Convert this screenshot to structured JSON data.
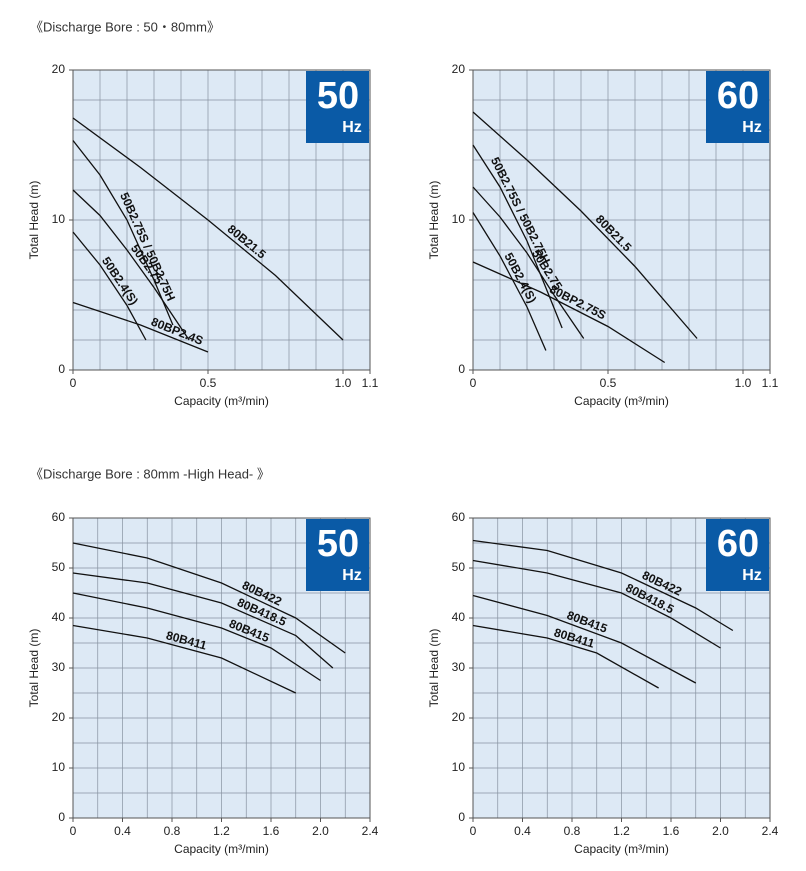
{
  "sections": [
    {
      "heading": "《Discharge Bore : 50・80mm》"
    },
    {
      "heading": "《Discharge Bore : 80mm -High Head- 》"
    }
  ],
  "chart_data": [
    {
      "type": "line",
      "badge": {
        "value": "50",
        "unit": "Hz"
      },
      "xlabel": "Capacity (m³/min)",
      "ylabel": "Total Head (m)",
      "xlim": [
        0,
        1.1
      ],
      "xticks": [
        0,
        0.5,
        {
          "value": 1,
          "label": "1.0"
        },
        1.1
      ],
      "ylim": [
        0,
        20
      ],
      "yticks": [
        0,
        10,
        20
      ],
      "grid_step": [
        0.1,
        2
      ],
      "color": "#111111",
      "series": [
        {
          "name": "80B21.5",
          "x": [
            0,
            0.25,
            0.5,
            0.75,
            1.0
          ],
          "values": [
            16.8,
            13.5,
            10,
            6.3,
            2
          ]
        },
        {
          "name": "50B2.75S / 50B2.75H",
          "x": [
            0,
            0.1,
            0.2,
            0.3,
            0.37
          ],
          "values": [
            15.3,
            13,
            10,
            6,
            3
          ]
        },
        {
          "name": "50B2.75",
          "x": [
            0,
            0.1,
            0.2,
            0.3,
            0.43
          ],
          "values": [
            12,
            10.3,
            8,
            5.5,
            2
          ]
        },
        {
          "name": "50B2.4(S)",
          "x": [
            0,
            0.1,
            0.2,
            0.27
          ],
          "values": [
            9.2,
            7,
            4.3,
            2
          ]
        },
        {
          "name": "80BP2.4S",
          "x": [
            0,
            0.25,
            0.5
          ],
          "values": [
            4.5,
            3,
            1.2
          ]
        }
      ]
    },
    {
      "type": "line",
      "badge": {
        "value": "60",
        "unit": "Hz"
      },
      "xlabel": "Capacity (m³/min)",
      "ylabel": "Total Head (m)",
      "xlim": [
        0,
        1.1
      ],
      "xticks": [
        0,
        0.5,
        {
          "value": 1,
          "label": "1.0"
        },
        1.1
      ],
      "ylim": [
        0,
        20
      ],
      "yticks": [
        0,
        10,
        20
      ],
      "grid_step": [
        0.1,
        2
      ],
      "color": "#111111",
      "series": [
        {
          "name": "80B21.5",
          "x": [
            0,
            0.2,
            0.4,
            0.6,
            0.83
          ],
          "values": [
            17.2,
            14,
            10.6,
            6.9,
            2.1
          ]
        },
        {
          "name": "50B2.75S / 50B2.75H",
          "x": [
            0,
            0.1,
            0.2,
            0.33
          ],
          "values": [
            15,
            12.2,
            8.6,
            2.8
          ]
        },
        {
          "name": "50B2.75",
          "x": [
            0,
            0.1,
            0.2,
            0.3,
            0.41
          ],
          "values": [
            12.2,
            10.2,
            7.8,
            5,
            2.1
          ]
        },
        {
          "name": "50B2.4(S)",
          "x": [
            0,
            0.1,
            0.2,
            0.27
          ],
          "values": [
            10.5,
            7.6,
            4.2,
            1.3
          ]
        },
        {
          "name": "80BP2.75S",
          "x": [
            0,
            0.25,
            0.5,
            0.71
          ],
          "values": [
            7.2,
            5.2,
            2.9,
            0.5
          ]
        }
      ]
    },
    {
      "type": "line",
      "badge": {
        "value": "50",
        "unit": "Hz"
      },
      "xlabel": "Capacity (m³/min)",
      "ylabel": "Total Head (m)",
      "xlim": [
        0,
        2.4
      ],
      "xticks": [
        0,
        0.4,
        0.8,
        1.2,
        1.6,
        {
          "value": 2,
          "label": "2.0"
        },
        2.4
      ],
      "ylim": [
        0,
        60
      ],
      "yticks": [
        0,
        10,
        20,
        30,
        40,
        50,
        60
      ],
      "grid_step": [
        0.2,
        5
      ],
      "color": "#111111",
      "series": [
        {
          "name": "80B422",
          "x": [
            0,
            0.6,
            1.2,
            1.8,
            2.2
          ],
          "values": [
            55,
            52,
            47,
            40,
            33
          ]
        },
        {
          "name": "80B418.5",
          "x": [
            0,
            0.6,
            1.2,
            1.8,
            2.1
          ],
          "values": [
            49,
            47,
            43,
            36.5,
            30
          ]
        },
        {
          "name": "80B415",
          "x": [
            0,
            0.6,
            1.2,
            1.6,
            2.0
          ],
          "values": [
            45,
            42,
            38,
            34,
            27.5
          ]
        },
        {
          "name": "80B411",
          "x": [
            0,
            0.6,
            1.2,
            1.8
          ],
          "values": [
            38.5,
            36,
            32,
            25
          ]
        }
      ]
    },
    {
      "type": "line",
      "badge": {
        "value": "60",
        "unit": "Hz"
      },
      "xlabel": "Capacity (m³/min)",
      "ylabel": "Total Head (m)",
      "xlim": [
        0,
        2.4
      ],
      "xticks": [
        0,
        0.4,
        0.8,
        1.2,
        1.6,
        {
          "value": 2,
          "label": "2.0"
        },
        2.4
      ],
      "ylim": [
        0,
        60
      ],
      "yticks": [
        0,
        10,
        20,
        30,
        40,
        50,
        60
      ],
      "grid_step": [
        0.2,
        5
      ],
      "color": "#111111",
      "series": [
        {
          "name": "80B422",
          "x": [
            0,
            0.6,
            1.2,
            1.8,
            2.1
          ],
          "values": [
            55.5,
            53.5,
            49,
            42,
            37.5
          ]
        },
        {
          "name": "80B418.5",
          "x": [
            0,
            0.6,
            1.2,
            1.6,
            2.0
          ],
          "values": [
            51.5,
            49,
            45,
            40,
            34
          ]
        },
        {
          "name": "80B415",
          "x": [
            0,
            0.6,
            1.2,
            1.8
          ],
          "values": [
            44.5,
            40.5,
            35,
            27
          ]
        },
        {
          "name": "80B411",
          "x": [
            0,
            0.6,
            1.0,
            1.5
          ],
          "values": [
            38.5,
            36,
            33,
            26
          ]
        }
      ]
    }
  ]
}
